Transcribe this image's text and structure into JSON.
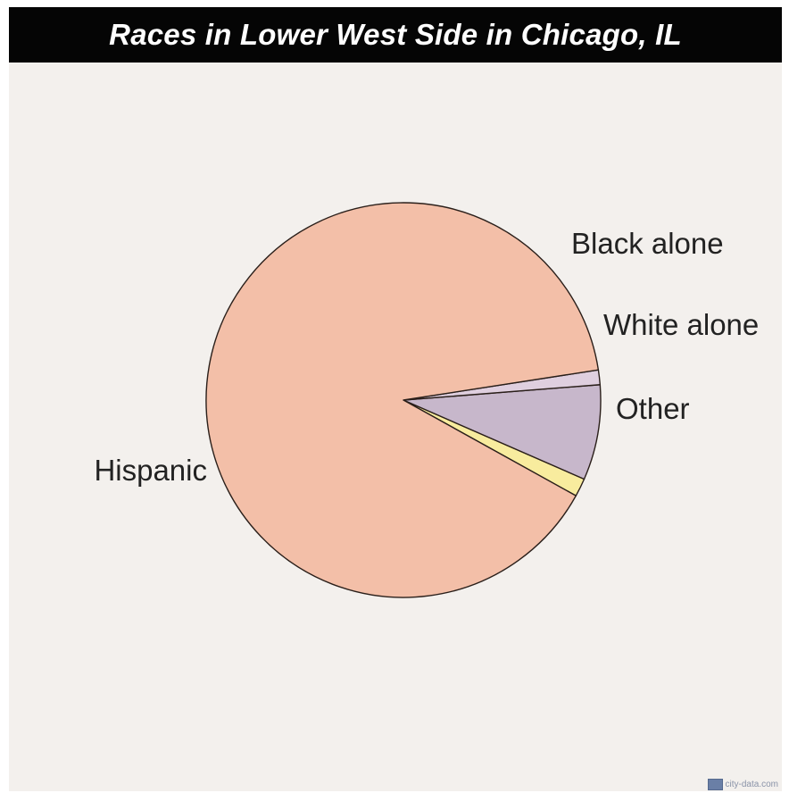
{
  "colors": {
    "background": "#f3f0ed",
    "title_bar": "#050505",
    "title_text": "#ffffff",
    "outline": "#2a1f1a"
  },
  "chart_data": {
    "type": "pie",
    "title": "Races in Lower West Side in Chicago, IL",
    "slices": [
      {
        "label": "Black alone",
        "value": 1.5,
        "color": "#f8ec9e"
      },
      {
        "label": "White alone",
        "value": 7.8,
        "color": "#c7b7cb"
      },
      {
        "label": "Other",
        "value": 1.2,
        "color": "#dfcfdf"
      },
      {
        "label": "Hispanic",
        "value": 89.5,
        "color": "#f3bfa8"
      }
    ],
    "legend": "none"
  },
  "watermark": {
    "text": "city-data.com",
    "logo_icon": "city-data-logo-icon"
  }
}
